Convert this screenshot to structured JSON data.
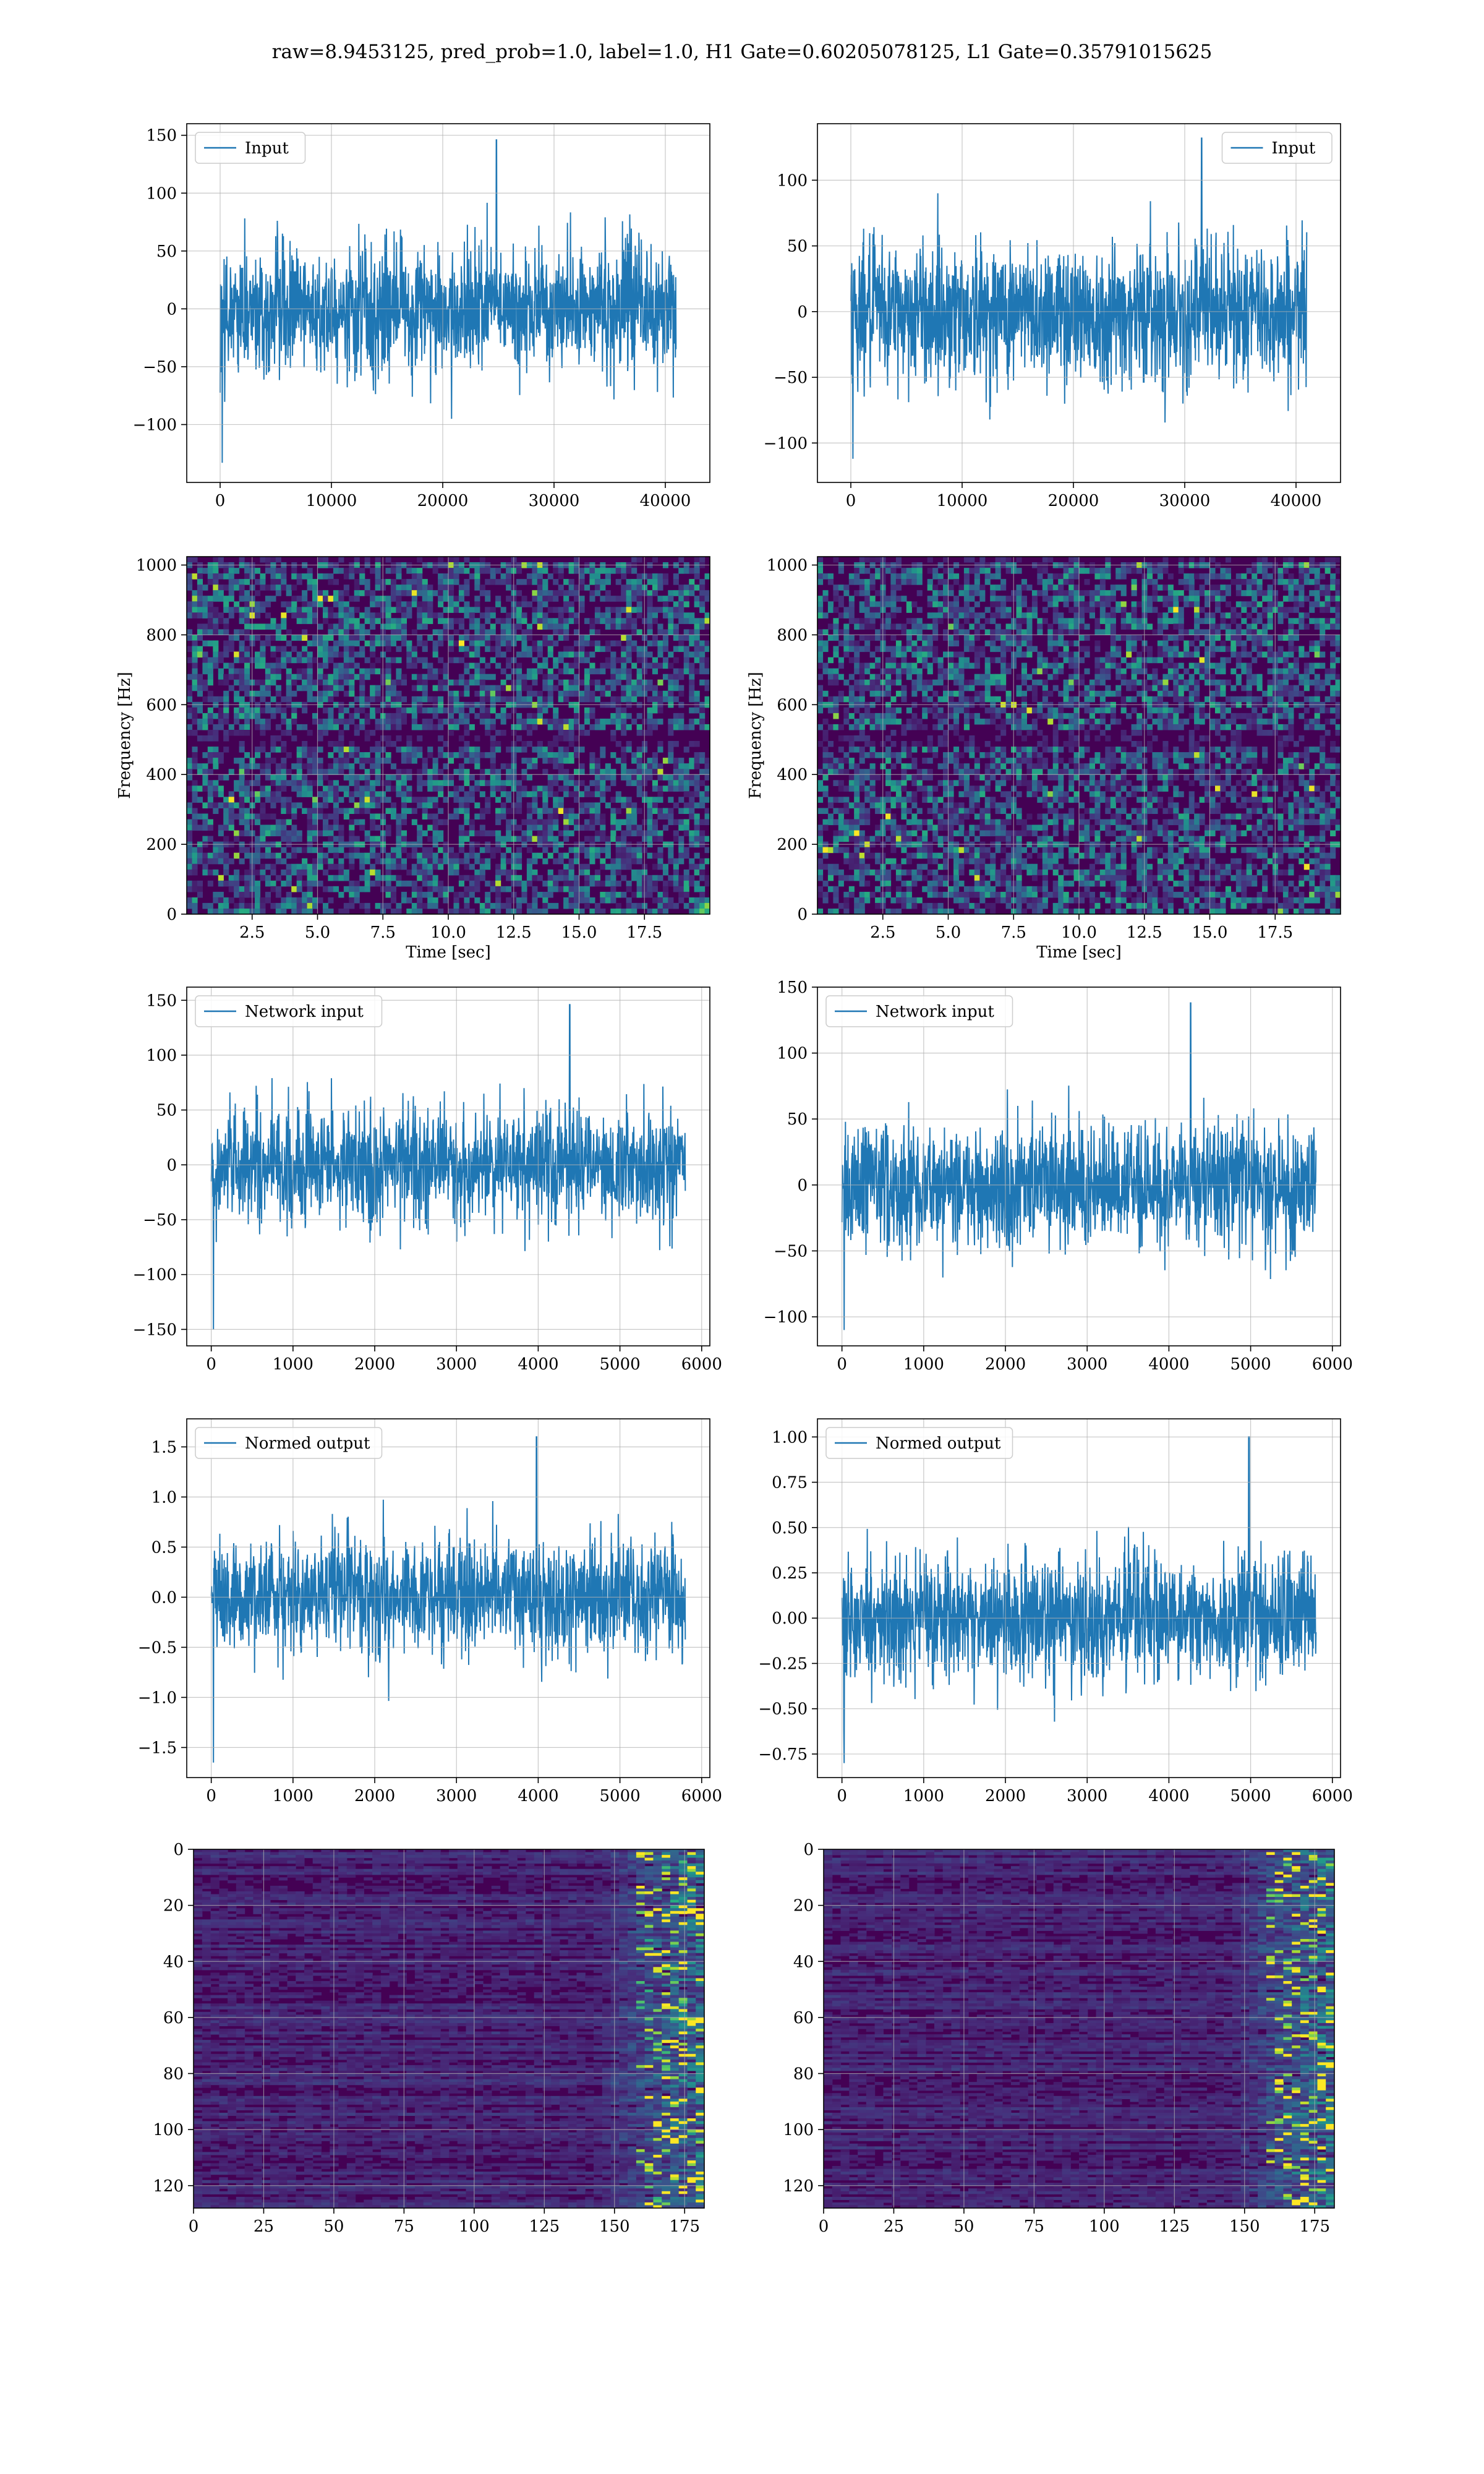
{
  "title": "raw=8.9453125, pred_prob=1.0, label=1.0, H1 Gate=0.60205078125, L1 Gate=0.35791015625",
  "colors": {
    "line": "#1f77b4",
    "grid": "#b0b0b0",
    "viridis_dark": "#440154",
    "viridis_mid": "#2c728e",
    "viridis_light": "#fde725"
  },
  "chart_data": [
    {
      "id": "input-h1",
      "type": "line",
      "legend": "Input",
      "legend_loc": "upper-left",
      "xlim": [
        -3000,
        44000
      ],
      "ylim": [
        -150,
        160
      ],
      "xticks": [
        0,
        10000,
        20000,
        30000,
        40000
      ],
      "yticks": [
        -100,
        -50,
        0,
        50,
        100,
        150
      ],
      "xticklabels": [
        "0",
        "10000",
        "20000",
        "30000",
        "40000"
      ],
      "yticklabels": [
        "−100",
        "−50",
        "0",
        "50",
        "100",
        "150"
      ],
      "n": 40960,
      "mean": 0,
      "std": 25,
      "max": 146,
      "min": -133,
      "grid": true
    },
    {
      "id": "input-l1",
      "type": "line",
      "legend": "Input",
      "legend_loc": "upper-right",
      "xlim": [
        -3000,
        44000
      ],
      "ylim": [
        -130,
        143
      ],
      "xticks": [
        0,
        10000,
        20000,
        30000,
        40000
      ],
      "yticks": [
        -100,
        -50,
        0,
        50,
        100
      ],
      "xticklabels": [
        "0",
        "10000",
        "20000",
        "30000",
        "40000"
      ],
      "yticklabels": [
        "−100",
        "−50",
        "0",
        "50",
        "100"
      ],
      "n": 40960,
      "mean": 0,
      "std": 25,
      "max": 132,
      "min": -112,
      "grid": true
    },
    {
      "id": "spec-h1",
      "type": "heatmap",
      "xlabel": "Time [sec]",
      "ylabel": "Frequency [Hz]",
      "xlim": [
        0,
        20
      ],
      "ylim": [
        0,
        1024
      ],
      "xticks": [
        2.5,
        5.0,
        7.5,
        10.0,
        12.5,
        15.0,
        17.5
      ],
      "yticks": [
        0,
        200,
        400,
        600,
        800,
        1000
      ],
      "xticklabels": [
        "2.5",
        "5.0",
        "7.5",
        "10.0",
        "12.5",
        "15.0",
        "17.5"
      ],
      "yticklabels": [
        "0",
        "200",
        "400",
        "600",
        "800",
        "1000"
      ],
      "grid": true
    },
    {
      "id": "spec-l1",
      "type": "heatmap",
      "xlabel": "Time [sec]",
      "ylabel": "Frequency [Hz]",
      "xlim": [
        0,
        20
      ],
      "ylim": [
        0,
        1024
      ],
      "xticks": [
        2.5,
        5.0,
        7.5,
        10.0,
        12.5,
        15.0,
        17.5
      ],
      "yticks": [
        0,
        200,
        400,
        600,
        800,
        1000
      ],
      "xticklabels": [
        "2.5",
        "5.0",
        "7.5",
        "10.0",
        "12.5",
        "15.0",
        "17.5"
      ],
      "yticklabels": [
        "0",
        "200",
        "400",
        "600",
        "800",
        "1000"
      ],
      "grid": true
    },
    {
      "id": "netin-h1",
      "type": "line",
      "legend": "Network input",
      "legend_loc": "upper-left",
      "xlim": [
        -300,
        6100
      ],
      "ylim": [
        -165,
        162
      ],
      "xticks": [
        0,
        1000,
        2000,
        3000,
        4000,
        5000,
        6000
      ],
      "yticks": [
        -150,
        -100,
        -50,
        0,
        50,
        100,
        150
      ],
      "xticklabels": [
        "0",
        "1000",
        "2000",
        "3000",
        "4000",
        "5000",
        "6000"
      ],
      "yticklabels": [
        "−150",
        "−100",
        "−50",
        "0",
        "50",
        "100",
        "150"
      ],
      "n": 5800,
      "mean": 0,
      "std": 25,
      "max": 146,
      "min": -150,
      "grid": true
    },
    {
      "id": "netin-l1",
      "type": "line",
      "legend": "Network input",
      "legend_loc": "upper-left",
      "xlim": [
        -300,
        6100
      ],
      "ylim": [
        -122,
        150
      ],
      "xticks": [
        0,
        1000,
        2000,
        3000,
        4000,
        5000,
        6000
      ],
      "yticks": [
        -100,
        -50,
        0,
        50,
        100,
        150
      ],
      "xticklabels": [
        "0",
        "1000",
        "2000",
        "3000",
        "4000",
        "5000",
        "6000"
      ],
      "yticklabels": [
        "−100",
        "−50",
        "0",
        "50",
        "100",
        "150"
      ],
      "n": 5800,
      "mean": 0,
      "std": 22,
      "max": 138,
      "min": -110,
      "grid": true
    },
    {
      "id": "norm-h1",
      "type": "line",
      "legend": "Normed output",
      "legend_loc": "upper-left",
      "xlim": [
        -300,
        6100
      ],
      "ylim": [
        -1.8,
        1.78
      ],
      "xticks": [
        0,
        1000,
        2000,
        3000,
        4000,
        5000,
        6000
      ],
      "yticks": [
        -1.5,
        -1.0,
        -0.5,
        0.0,
        0.5,
        1.0,
        1.5
      ],
      "xticklabels": [
        "0",
        "1000",
        "2000",
        "3000",
        "4000",
        "5000",
        "6000"
      ],
      "yticklabels": [
        "−1.5",
        "−1.0",
        "−0.5",
        "0.0",
        "0.5",
        "1.0",
        "1.5"
      ],
      "n": 5800,
      "mean": 0,
      "std": 0.27,
      "max": 1.6,
      "min": -1.65,
      "grid": true
    },
    {
      "id": "norm-l1",
      "type": "line",
      "legend": "Normed output",
      "legend_loc": "upper-left",
      "xlim": [
        -300,
        6100
      ],
      "ylim": [
        -0.88,
        1.1
      ],
      "xticks": [
        0,
        1000,
        2000,
        3000,
        4000,
        5000,
        6000
      ],
      "yticks": [
        -0.75,
        -0.5,
        -0.25,
        0.0,
        0.25,
        0.5,
        0.75,
        1.0
      ],
      "xticklabels": [
        "0",
        "1000",
        "2000",
        "3000",
        "4000",
        "5000",
        "6000"
      ],
      "yticklabels": [
        "−0.75",
        "−0.50",
        "−0.25",
        "0.00",
        "0.25",
        "0.50",
        "0.75",
        "1.00"
      ],
      "n": 5800,
      "mean": 0,
      "std": 0.16,
      "max": 1.0,
      "min": -0.8,
      "grid": true
    },
    {
      "id": "act-h1",
      "type": "heatmap",
      "xlim": [
        0,
        182
      ],
      "ylim": [
        128,
        0
      ],
      "xticks": [
        0,
        25,
        50,
        75,
        100,
        125,
        150,
        175
      ],
      "yticks": [
        0,
        20,
        40,
        60,
        80,
        100,
        120
      ],
      "xticklabels": [
        "0",
        "25",
        "50",
        "75",
        "100",
        "125",
        "150",
        "175"
      ],
      "yticklabels": [
        "0",
        "20",
        "40",
        "60",
        "80",
        "100",
        "120"
      ],
      "grid": true
    },
    {
      "id": "act-l1",
      "type": "heatmap",
      "xlim": [
        0,
        182
      ],
      "ylim": [
        128,
        0
      ],
      "xticks": [
        0,
        25,
        50,
        75,
        100,
        125,
        150,
        175
      ],
      "yticks": [
        0,
        20,
        40,
        60,
        80,
        100,
        120
      ],
      "xticklabels": [
        "0",
        "25",
        "50",
        "75",
        "100",
        "125",
        "150",
        "175"
      ],
      "yticklabels": [
        "0",
        "20",
        "40",
        "60",
        "80",
        "100",
        "120"
      ],
      "grid": true
    }
  ]
}
